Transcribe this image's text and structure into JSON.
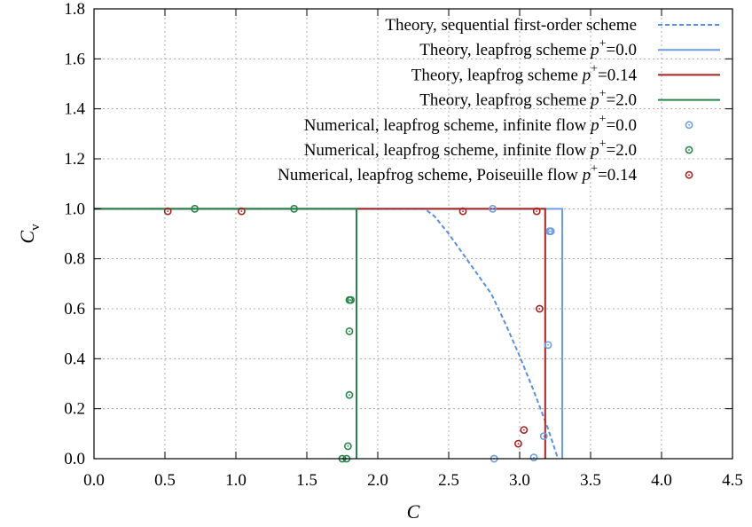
{
  "chart_data": {
    "type": "line",
    "xlabel": "C",
    "ylabel": "C",
    "ylabel_subscript": "v",
    "xlim": [
      0.0,
      4.5
    ],
    "ylim": [
      0.0,
      1.8
    ],
    "xticks": [
      "0.0",
      "0.5",
      "1.0",
      "1.5",
      "2.0",
      "2.5",
      "3.0",
      "3.5",
      "4.0",
      "4.5"
    ],
    "yticks": [
      "0.0",
      "0.2",
      "0.4",
      "0.6",
      "0.8",
      "1.0",
      "1.2",
      "1.4",
      "1.6",
      "1.8"
    ],
    "grid": true,
    "legend_position": "top-right",
    "series": [
      {
        "name": "Theory, sequential first-order scheme",
        "style": "dashed-line",
        "color": "#5b8fe0",
        "x": [
          0.0,
          2.33,
          2.4,
          2.5,
          2.6,
          2.7,
          2.8,
          2.9,
          3.0,
          3.1,
          3.2,
          3.27
        ],
        "y": [
          1.0,
          1.0,
          0.97,
          0.9,
          0.82,
          0.74,
          0.66,
          0.54,
          0.41,
          0.27,
          0.12,
          0.0
        ]
      },
      {
        "name": "Theory, leapfrog scheme p+=0.0",
        "style": "solid-line",
        "color": "#6c9de0",
        "x": [
          0.0,
          3.3,
          3.3
        ],
        "y": [
          1.0,
          1.0,
          0.0
        ]
      },
      {
        "name": "Theory, leapfrog scheme p+=0.14",
        "style": "solid-line",
        "color": "#a52323",
        "x": [
          0.0,
          3.18,
          3.18
        ],
        "y": [
          1.0,
          1.0,
          0.0
        ]
      },
      {
        "name": "Theory, leapfrog scheme p+=2.0",
        "style": "solid-line",
        "color": "#27864a",
        "x": [
          0.0,
          1.85,
          1.85
        ],
        "y": [
          1.0,
          1.0,
          0.0
        ]
      },
      {
        "name": "Numerical, leapfrog scheme, infinite flow p+=0.0",
        "style": "points",
        "color": "#6c9de0",
        "x": [
          2.81,
          2.82,
          3.1,
          3.17,
          3.2,
          3.21,
          3.22
        ],
        "y": [
          1.0,
          0.0,
          0.005,
          0.09,
          0.455,
          0.91,
          0.91
        ]
      },
      {
        "name": "Numerical, leapfrog scheme, infinite flow p+=2.0",
        "style": "points",
        "color": "#27864a",
        "x": [
          0.71,
          1.41,
          1.75,
          1.78,
          1.79,
          1.8,
          1.8,
          1.8,
          1.81
        ],
        "y": [
          1.0,
          1.0,
          0.0,
          0.0,
          0.05,
          0.255,
          0.51,
          0.635,
          0.635
        ]
      },
      {
        "name": "Numerical, leapfrog scheme, Poiseuille flow p+=0.14",
        "style": "points",
        "color": "#a52323",
        "x": [
          0.52,
          1.04,
          2.6,
          2.99,
          3.03,
          3.12,
          3.14
        ],
        "y": [
          0.99,
          0.99,
          0.99,
          0.06,
          0.115,
          0.99,
          0.6
        ]
      }
    ]
  },
  "legend": [
    {
      "pre": "Theory, sequential first-order scheme",
      "p": "",
      "sup": "",
      "post": "",
      "style": "dashed-line",
      "color": "#5b8fe0"
    },
    {
      "pre": "Theory, leapfrog scheme ",
      "p": "p",
      "sup": "+",
      "post": "=0.0",
      "style": "solid-line",
      "color": "#6c9de0"
    },
    {
      "pre": "Theory, leapfrog scheme ",
      "p": "p",
      "sup": "+",
      "post": "=0.14",
      "style": "solid-line",
      "color": "#a52323"
    },
    {
      "pre": "Theory, leapfrog scheme ",
      "p": "p",
      "sup": "+",
      "post": "=2.0",
      "style": "solid-line",
      "color": "#27864a"
    },
    {
      "pre": "Numerical, leapfrog scheme, infinite flow ",
      "p": "p",
      "sup": "+",
      "post": "=0.0",
      "style": "points",
      "color": "#6c9de0"
    },
    {
      "pre": "Numerical, leapfrog scheme, infinite flow ",
      "p": "p",
      "sup": "+",
      "post": "=2.0",
      "style": "points",
      "color": "#27864a"
    },
    {
      "pre": "Numerical, leapfrog scheme, Poiseuille flow ",
      "p": "p",
      "sup": "+",
      "post": "=0.14",
      "style": "points",
      "color": "#a52323"
    }
  ]
}
